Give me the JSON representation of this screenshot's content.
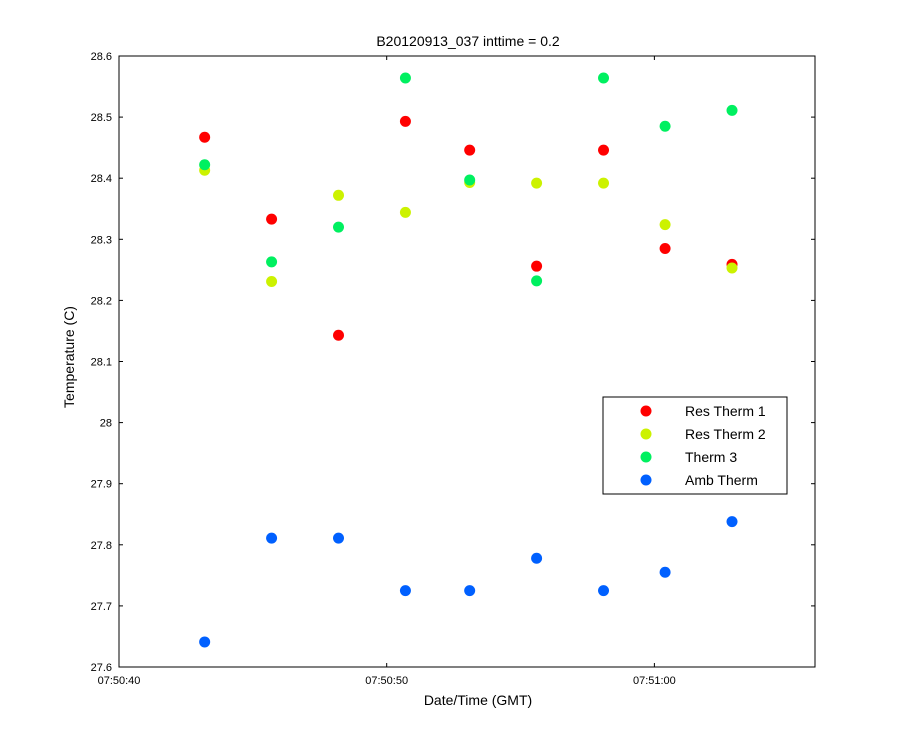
{
  "chart_data": {
    "type": "scatter",
    "title": "B20120913_037 inttime = 0.2",
    "xlabel": "Date/Time (GMT)",
    "ylabel": "Temperature (C)",
    "xlim": [
      "07:50:40",
      "07:51:06"
    ],
    "ylim": [
      27.6,
      28.6
    ],
    "x_ticks": [
      "07:50:40",
      "07:50:50",
      "07:51:00"
    ],
    "y_ticks": [
      27.6,
      27.7,
      27.8,
      27.9,
      28,
      28.1,
      28.2,
      28.3,
      28.4,
      28.5,
      28.6
    ],
    "grid": false,
    "legend_position": "center-right",
    "x": [
      "07:50:43.2",
      "07:50:45.7",
      "07:50:48.2",
      "07:50:50.7",
      "07:50:53.1",
      "07:50:55.6",
      "07:50:58.1",
      "07:51:00.4",
      "07:51:02.9"
    ],
    "series": [
      {
        "name": "Res Therm 1",
        "color": "#ff0000",
        "values": [
          28.467,
          28.333,
          28.143,
          28.493,
          28.446,
          28.256,
          28.446,
          28.285,
          28.259
        ]
      },
      {
        "name": "Res Therm 2",
        "color": "#ccf200",
        "values": [
          28.413,
          28.231,
          28.372,
          28.344,
          28.393,
          28.392,
          28.392,
          28.324,
          28.253
        ]
      },
      {
        "name": "Therm 3",
        "color": "#00f060",
        "values": [
          28.422,
          28.263,
          28.32,
          28.564,
          28.397,
          28.232,
          28.564,
          28.485,
          28.511
        ]
      },
      {
        "name": "Amb Therm",
        "color": "#0060ff",
        "values": [
          27.641,
          27.811,
          27.811,
          27.725,
          27.725,
          27.778,
          27.725,
          27.755,
          27.838
        ]
      }
    ]
  }
}
